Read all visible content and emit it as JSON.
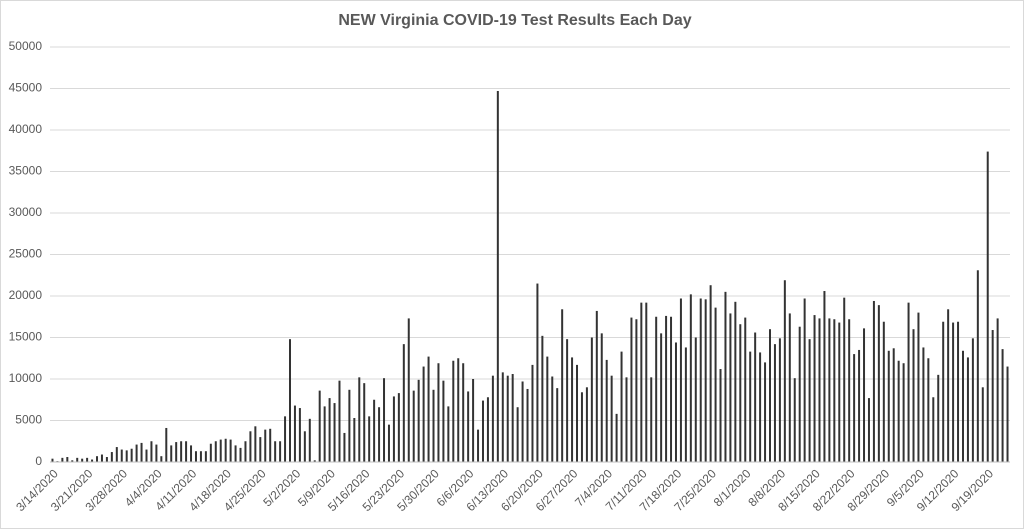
{
  "chart_data": {
    "type": "bar",
    "title": "NEW Virginia COVID-19 Test Results Each Day",
    "categories": [
      "3/14/2020",
      null,
      null,
      null,
      null,
      null,
      null,
      "3/21/2020",
      null,
      null,
      null,
      null,
      null,
      null,
      "3/28/2020",
      null,
      null,
      null,
      null,
      null,
      null,
      "4/4/2020",
      null,
      null,
      null,
      null,
      null,
      null,
      "4/11/2020",
      null,
      null,
      null,
      null,
      null,
      null,
      "4/18/2020",
      null,
      null,
      null,
      null,
      null,
      null,
      "4/25/2020",
      null,
      null,
      null,
      null,
      null,
      null,
      "5/2/2020",
      null,
      null,
      null,
      null,
      null,
      null,
      "5/9/2020",
      null,
      null,
      null,
      null,
      null,
      null,
      "5/16/2020",
      null,
      null,
      null,
      null,
      null,
      null,
      "5/23/2020",
      null,
      null,
      null,
      null,
      null,
      null,
      "5/30/2020",
      null,
      null,
      null,
      null,
      null,
      null,
      "6/6/2020",
      null,
      null,
      null,
      null,
      null,
      null,
      "6/13/2020",
      null,
      null,
      null,
      null,
      null,
      null,
      "6/20/2020",
      null,
      null,
      null,
      null,
      null,
      null,
      "6/27/2020",
      null,
      null,
      null,
      null,
      null,
      null,
      "7/4/2020",
      null,
      null,
      null,
      null,
      null,
      null,
      "7/11/2020",
      null,
      null,
      null,
      null,
      null,
      null,
      "7/18/2020",
      null,
      null,
      null,
      null,
      null,
      null,
      "7/25/2020",
      null,
      null,
      null,
      null,
      null,
      null,
      "8/1/2020",
      null,
      null,
      null,
      null,
      null,
      null,
      "8/8/2020",
      null,
      null,
      null,
      null,
      null,
      null,
      "8/15/2020",
      null,
      null,
      null,
      null,
      null,
      null,
      "8/22/2020",
      null,
      null,
      null,
      null,
      null,
      null,
      "8/29/2020",
      null,
      null,
      null,
      null,
      null,
      null,
      "9/5/2020",
      null,
      null,
      null,
      null,
      null,
      null,
      "9/12/2020",
      null,
      null,
      null,
      null,
      null,
      null,
      "9/19/2020",
      null,
      null,
      null,
      null
    ],
    "values": [
      400,
      100,
      500,
      600,
      200,
      500,
      400,
      500,
      300,
      700,
      900,
      600,
      1200,
      1800,
      1500,
      1400,
      1600,
      2100,
      2300,
      1500,
      2500,
      2100,
      700,
      4100,
      2000,
      2400,
      2500,
      2500,
      2000,
      1300,
      1300,
      1300,
      2200,
      2500,
      2700,
      2800,
      2700,
      2000,
      1700,
      2500,
      3700,
      4300,
      3000,
      3900,
      4000,
      2500,
      2500,
      5500,
      14800,
      6800,
      6500,
      3700,
      5200,
      200,
      8600,
      6700,
      7700,
      7100,
      9800,
      3500,
      8700,
      5300,
      10200,
      9500,
      5500,
      7500,
      6600,
      10100,
      4500,
      7900,
      8300,
      14200,
      17300,
      8600,
      9900,
      11500,
      12700,
      8700,
      11900,
      9800,
      6700,
      12200,
      12500,
      11900,
      8500,
      10000,
      3900,
      7400,
      7800,
      10400,
      44700,
      10800,
      10400,
      10600,
      6600,
      9700,
      8800,
      11700,
      21500,
      15200,
      12700,
      10300,
      8900,
      18400,
      14800,
      12600,
      11700,
      8400,
      9000,
      15000,
      18200,
      15500,
      12300,
      10400,
      5800,
      13300,
      10200,
      17400,
      17200,
      19200,
      19200,
      10200,
      17500,
      15500,
      17600,
      17500,
      14400,
      19700,
      13800,
      20200,
      15000,
      19700,
      19600,
      21300,
      18600,
      11200,
      20500,
      17900,
      19300,
      16600,
      17400,
      13300,
      15600,
      13200,
      12000,
      16000,
      14200,
      14900,
      21900,
      17900,
      10100,
      16300,
      19700,
      14800,
      17700,
      17300,
      20600,
      17300,
      17200,
      16800,
      19800,
      17200,
      13000,
      13500,
      16100,
      7700,
      19400,
      18900,
      16900,
      13400,
      13700,
      12200,
      11900,
      19200,
      16000,
      18000,
      13800,
      12500,
      7800,
      10500,
      16900,
      18400,
      16800,
      16900,
      13400,
      12600,
      14900,
      23100,
      9000,
      37400,
      15900,
      17300,
      13600,
      11500
    ],
    "color": "#333333",
    "ylim": [
      0,
      50000
    ],
    "yticks": [
      0,
      5000,
      10000,
      15000,
      20000,
      25000,
      30000,
      35000,
      40000,
      45000,
      50000
    ],
    "grid": true
  }
}
